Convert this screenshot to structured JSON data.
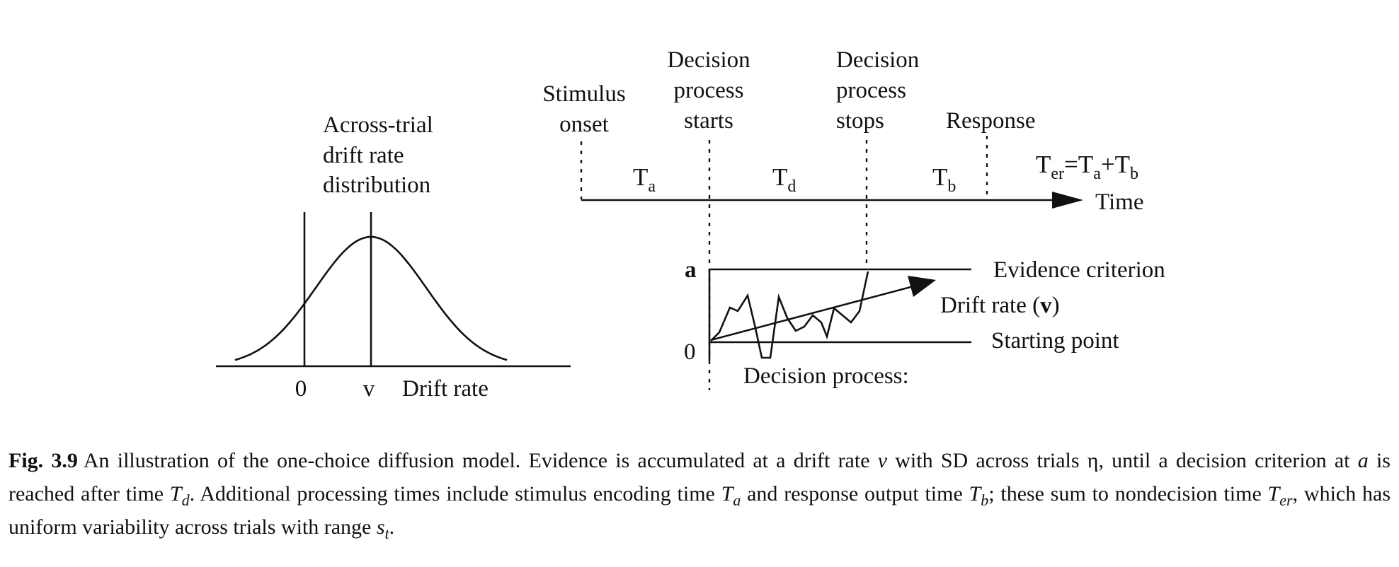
{
  "diagram": {
    "left_panel": {
      "title_lines": [
        "Across-trial",
        "drift rate",
        "distribution"
      ],
      "zero_label": "0",
      "v_label": "v",
      "axis_label": "Drift rate"
    },
    "timeline": {
      "stimulus_lines": [
        "Stimulus",
        "onset"
      ],
      "start_lines": [
        "Decision",
        "process",
        "starts"
      ],
      "stop_lines": [
        "Decision",
        "process",
        "stops"
      ],
      "response_label": "Response",
      "time_label": "Time",
      "ta": {
        "base": "T",
        "sub": "a"
      },
      "td": {
        "base": "T",
        "sub": "d"
      },
      "tb": {
        "base": "T",
        "sub": "b"
      },
      "ter": {
        "base": "T",
        "sub": "er",
        "eq": "=",
        "a_base": "T",
        "a_sub": "a",
        "plus": "+",
        "b_base": "T",
        "b_sub": "b"
      }
    },
    "process_panel": {
      "a_label": "a",
      "zero_label": "0",
      "evidence_criterion": "Evidence criterion",
      "drift_rate_prefix": "Drift rate (",
      "drift_rate_symbol": "v",
      "drift_rate_suffix": ")",
      "starting_point": "Starting point",
      "decision_process": "Decision process:"
    }
  },
  "caption": {
    "label": "Fig. 3.9",
    "p1": "An illustration of the one-choice diffusion model. Evidence is accumulated at a drift rate ",
    "v": "v",
    "p2": " with SD across trials η, until a decision criterion at ",
    "a": "a",
    "p3": " is reached after time ",
    "td_base": "T",
    "td_sub": "d",
    "p4": ". Additional processing times include stimulus encoding time ",
    "ta_base": "T",
    "ta_sub": "a",
    "p5": " and response output time ",
    "tb_base": "T",
    "tb_sub": "b",
    "p6": "; these sum to nondecision time ",
    "ter_base": "T",
    "ter_sub": "er",
    "p7": ", which has uniform variability across trials with range ",
    "st_base": "s",
    "st_sub": "t",
    "p8": "."
  }
}
